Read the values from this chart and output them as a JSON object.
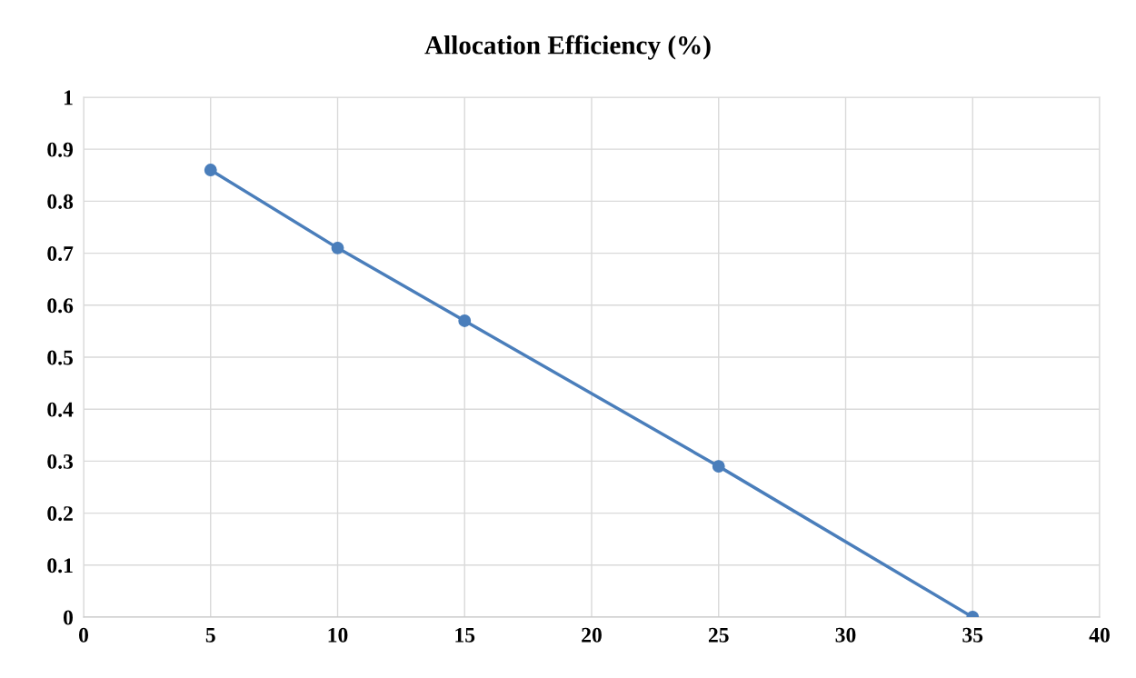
{
  "chart_data": {
    "type": "line",
    "title": "Allocation Efficiency (%)",
    "x": [
      5,
      10,
      15,
      25,
      35
    ],
    "series": [
      {
        "color": "#4a7ebb",
        "values": [
          0.86,
          0.71,
          0.57,
          0.29,
          0
        ]
      }
    ],
    "xlim": [
      0,
      40
    ],
    "xticks": [
      0,
      5,
      10,
      15,
      20,
      25,
      30,
      35,
      40
    ],
    "ylim": [
      0,
      1
    ],
    "yticks": [
      0,
      0.1,
      0.2,
      0.3,
      0.4,
      0.5,
      0.6,
      0.7,
      0.8,
      0.9,
      1
    ],
    "grid": true,
    "marker": "circle",
    "line_style": "solid"
  }
}
